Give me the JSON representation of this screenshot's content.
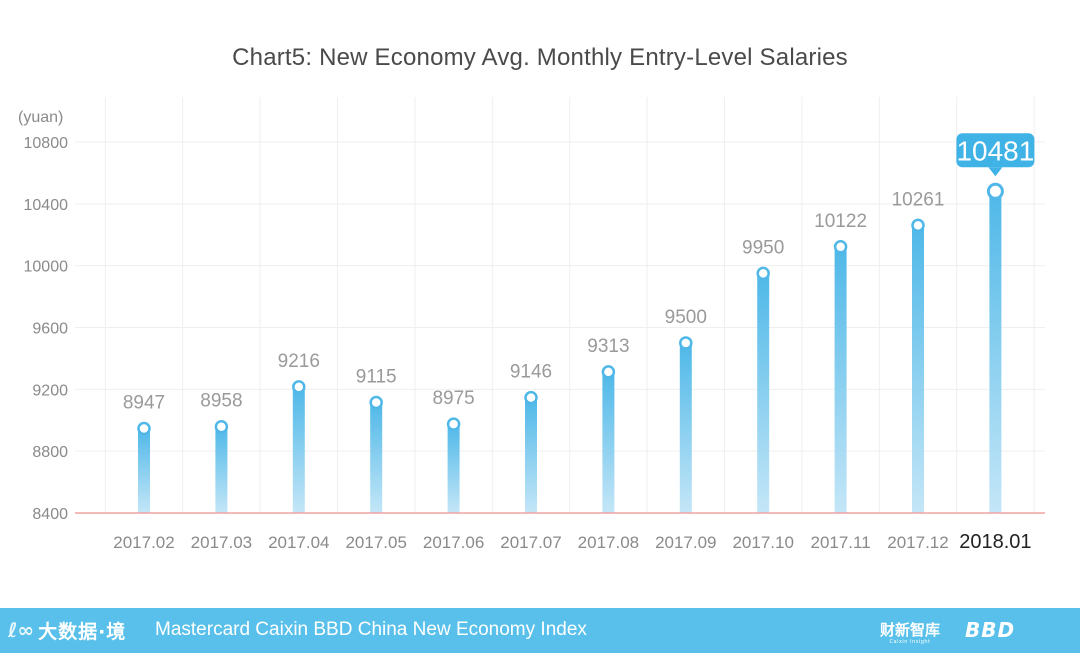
{
  "chart_data": {
    "type": "bar",
    "title": "Chart5:  New Economy Avg. Monthly Entry-Level Salaries",
    "ylabel": "(yuan)",
    "xlabel": "",
    "categories": [
      "2017.02",
      "2017.03",
      "2017.04",
      "2017.05",
      "2017.06",
      "2017.07",
      "2017.08",
      "2017.09",
      "2017.10",
      "2017.11",
      "2017.12",
      "2018.01"
    ],
    "values": [
      8947,
      8958,
      9216,
      9115,
      8975,
      9146,
      9313,
      9500,
      9950,
      10122,
      10261,
      10481
    ],
    "value_labels": [
      "8947",
      "8958",
      "9216",
      "9115",
      "8975",
      "9146",
      "9313",
      "9500",
      "9950",
      "10122",
      "10261",
      "10481"
    ],
    "ylim": [
      8400,
      10800
    ],
    "y_ticks": [
      8400,
      8800,
      9200,
      9600,
      10000,
      10400,
      10800
    ],
    "y_tick_labels": [
      "8400",
      "8800",
      "9200",
      "9600",
      "10000",
      "10400",
      "10800"
    ],
    "highlight_index": 11,
    "grid": true,
    "colors": {
      "bar_top": "#4fb8e8",
      "bar_bottom": "#c4e6f7",
      "highlight_bubble": "#3fb2e6",
      "baseline": "#f0a3a3",
      "grid": "#efefef",
      "label": "#9a9a9a",
      "tick": "#8a8a8a"
    }
  },
  "footer": {
    "logo_mark": "ℓ∞",
    "logo_text": "大数据·境",
    "title": "Mastercard Caixin BBD China New Economy Index",
    "right_cn": "财新智库",
    "right_cn_sub": "Caixin Insight",
    "right_bbd": "BBD"
  },
  "colors": {
    "footer_bg": "#58c0ea"
  }
}
